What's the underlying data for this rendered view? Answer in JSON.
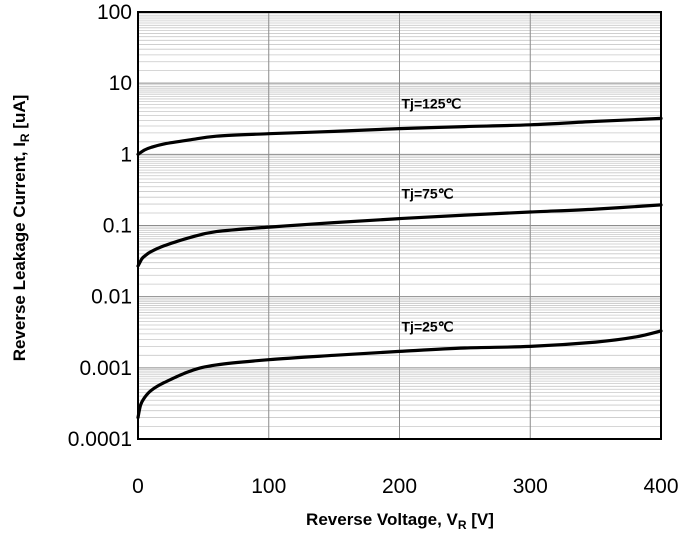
{
  "chart_data": {
    "type": "line",
    "title": "",
    "xlabel": "Reverse Voltage, V",
    "xlabel_sub": "R",
    "xlabel_unit": " [V]",
    "ylabel": "Reverse Leakage Current, I",
    "ylabel_sub": "R",
    "ylabel_unit": " [uA]",
    "xlim": [
      0,
      400
    ],
    "ylim": [
      0.0001,
      100
    ],
    "yscale": "log",
    "grid": true,
    "x_ticks": [
      0,
      100,
      200,
      300,
      400
    ],
    "x_tick_labels": [
      "0",
      "100",
      "200",
      "300",
      "400"
    ],
    "y_ticks": [
      0.0001,
      0.001,
      0.01,
      0.1,
      1,
      10,
      100
    ],
    "y_tick_labels": [
      "0.0001",
      "0.001",
      "0.01",
      "0.1",
      "1",
      "10",
      "100"
    ],
    "series": [
      {
        "name": "Tj=125℃",
        "x": [
          0,
          5,
          10,
          20,
          40,
          60,
          100,
          150,
          200,
          250,
          300,
          350,
          400
        ],
        "y": [
          1.0,
          1.15,
          1.25,
          1.4,
          1.6,
          1.8,
          1.95,
          2.1,
          2.3,
          2.45,
          2.6,
          2.9,
          3.2
        ]
      },
      {
        "name": "Tj=75℃",
        "x": [
          0,
          3,
          5,
          10,
          20,
          40,
          60,
          100,
          150,
          200,
          250,
          300,
          350,
          400
        ],
        "y": [
          0.027,
          0.034,
          0.037,
          0.043,
          0.052,
          0.068,
          0.082,
          0.095,
          0.11,
          0.125,
          0.14,
          0.155,
          0.17,
          0.195
        ]
      },
      {
        "name": "Tj=25℃",
        "x": [
          0,
          2,
          5,
          10,
          20,
          40,
          60,
          100,
          150,
          200,
          250,
          300,
          350,
          380,
          400
        ],
        "y": [
          0.0002,
          0.0003,
          0.00038,
          0.00048,
          0.00062,
          0.0009,
          0.0011,
          0.0013,
          0.0015,
          0.0017,
          0.0019,
          0.002,
          0.0023,
          0.0027,
          0.0033
        ]
      }
    ]
  }
}
